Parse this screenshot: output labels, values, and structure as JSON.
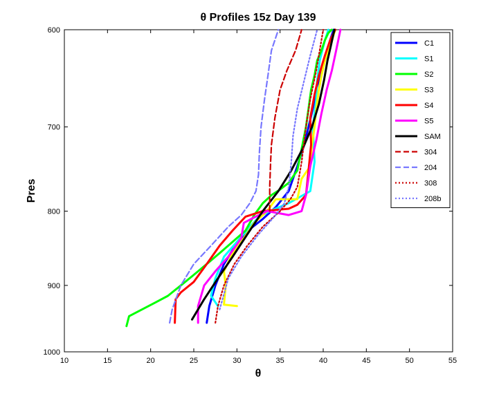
{
  "chart_data": {
    "type": "line",
    "title": "θ Profiles 15z Day 139",
    "xlabel": "θ",
    "ylabel": "Pres",
    "xlim": [
      10,
      55
    ],
    "ylim": [
      1000,
      600
    ],
    "y_scale": "log",
    "y_reversed": true,
    "x_ticks": [
      10,
      15,
      20,
      25,
      30,
      35,
      40,
      45,
      50,
      55
    ],
    "y_ticks": [
      600,
      700,
      800,
      900,
      1000
    ],
    "grid": false,
    "legend_placement": "top-right",
    "series": [
      {
        "name": "C1",
        "color": "#0000ff",
        "style": "solid",
        "x": [
          26.5,
          26.8,
          27.5,
          28.5,
          29.8,
          31.3,
          33,
          34.5,
          36,
          37,
          37.8,
          38.3,
          38.8,
          39.2,
          39.8,
          40.4,
          40.8,
          41.2
        ],
        "y": [
          955,
          930,
          900,
          870,
          845,
          825,
          810,
          795,
          775,
          745,
          720,
          700,
          680,
          660,
          640,
          625,
          610,
          600
        ]
      },
      {
        "name": "S1",
        "color": "#00ffff",
        "style": "solid",
        "x": [
          27.8,
          27,
          27.5,
          28.5,
          30,
          31.5,
          32.5,
          33.8,
          36,
          38.5,
          39,
          38.8,
          39.2,
          39.3,
          39.6,
          40.2,
          40.6
        ],
        "y": [
          930,
          915,
          890,
          860,
          840,
          820,
          808,
          800,
          790,
          775,
          740,
          700,
          670,
          650,
          630,
          610,
          600
        ]
      },
      {
        "name": "S2",
        "color": "#00ff00",
        "style": "solid",
        "x": [
          17.2,
          17.5,
          19,
          20.5,
          22,
          23.5,
          25,
          26.5,
          28,
          29.5,
          31,
          32,
          33,
          34,
          35,
          36,
          37,
          37.5,
          38,
          38.3,
          38.6,
          39,
          39.3,
          39.8,
          40.2,
          40.6,
          41
        ],
        "y": [
          960,
          945,
          935,
          925,
          915,
          900,
          885,
          870,
          855,
          840,
          825,
          805,
          790,
          780,
          773,
          765,
          750,
          725,
          700,
          680,
          660,
          645,
          630,
          620,
          610,
          603,
          600
        ]
      },
      {
        "name": "S3",
        "color": "#ffff00",
        "style": "solid",
        "x": [
          30,
          28.5,
          28.7,
          28.5,
          29.5,
          30.5,
          32,
          33.5,
          34.5,
          37,
          37.5,
          38.5,
          38.7,
          39,
          39.2,
          39.5,
          39.8,
          40.2,
          40.8,
          41.4
        ],
        "y": [
          930,
          928,
          900,
          880,
          855,
          840,
          815,
          800,
          785,
          785,
          760,
          745,
          720,
          700,
          680,
          660,
          645,
          630,
          615,
          600
        ]
      },
      {
        "name": "S4",
        "color": "#ff0000",
        "style": "solid",
        "x": [
          22.8,
          22.9,
          23.5,
          25,
          26.5,
          28,
          29.5,
          31,
          33,
          36,
          37,
          38,
          38.3,
          38.6,
          38.5,
          39,
          39.5,
          40.2,
          40.8,
          41.4
        ],
        "y": [
          955,
          920,
          910,
          895,
          870,
          845,
          825,
          807,
          800,
          797,
          792,
          780,
          750,
          720,
          690,
          665,
          645,
          625,
          610,
          600
        ]
      },
      {
        "name": "S5",
        "color": "#ff00ff",
        "style": "solid",
        "x": [
          25.5,
          25.5,
          26.2,
          27.5,
          29,
          30.5,
          30.8,
          32,
          33.5,
          36,
          37.5,
          38,
          38.5,
          39.2,
          39.8,
          40.4,
          41,
          41.5,
          42
        ],
        "y": [
          955,
          930,
          900,
          880,
          860,
          835,
          815,
          808,
          800,
          805,
          800,
          780,
          745,
          715,
          685,
          660,
          640,
          620,
          600
        ]
      },
      {
        "name": "SAM",
        "color": "#000000",
        "style": "solid",
        "x": [
          24.8,
          26.2,
          27.8,
          29.5,
          31.2,
          33,
          34.8,
          36.3,
          37.6,
          38.7,
          39.5,
          40.1,
          40.5,
          40.9,
          41.3
        ],
        "y": [
          950,
          920,
          890,
          860,
          830,
          800,
          775,
          750,
          725,
          700,
          675,
          650,
          630,
          615,
          600
        ]
      },
      {
        "name": "304",
        "color": "#cc0000",
        "style": "dashed",
        "x": [
          33.8,
          33.8,
          33.9,
          34,
          34.4,
          35,
          35.8,
          36.8,
          37.5
        ],
        "y": [
          800,
          770,
          740,
          720,
          690,
          660,
          640,
          620,
          600
        ]
      },
      {
        "name": "204",
        "color": "#7777ff",
        "style": "dashed",
        "x": [
          22.2,
          22.5,
          23.5,
          25,
          27,
          29,
          30.5,
          31.5,
          32.2,
          32.5,
          32.6,
          32.8,
          33.2,
          33.6,
          34,
          34.8
        ],
        "y": [
          955,
          935,
          900,
          870,
          845,
          820,
          805,
          790,
          775,
          755,
          730,
          700,
          670,
          645,
          620,
          600
        ]
      },
      {
        "name": "308",
        "color": "#cc0000",
        "style": "dotted",
        "x": [
          27.5,
          27.8,
          28.5,
          29.7,
          31.2,
          33,
          35,
          36.2,
          37,
          37.5,
          38,
          38.5,
          39.2,
          40
        ],
        "y": [
          955,
          930,
          900,
          870,
          845,
          820,
          800,
          785,
          770,
          740,
          700,
          670,
          640,
          600
        ]
      },
      {
        "name": "208b",
        "color": "#7777ff",
        "style": "dotted",
        "x": [
          28,
          29,
          30.5,
          32.5,
          34.5,
          35.5,
          36,
          36.3,
          36.5,
          37,
          37.8,
          38.5,
          39.3
        ],
        "y": [
          935,
          890,
          860,
          830,
          805,
          790,
          770,
          740,
          710,
          680,
          650,
          625,
          600
        ]
      }
    ]
  }
}
